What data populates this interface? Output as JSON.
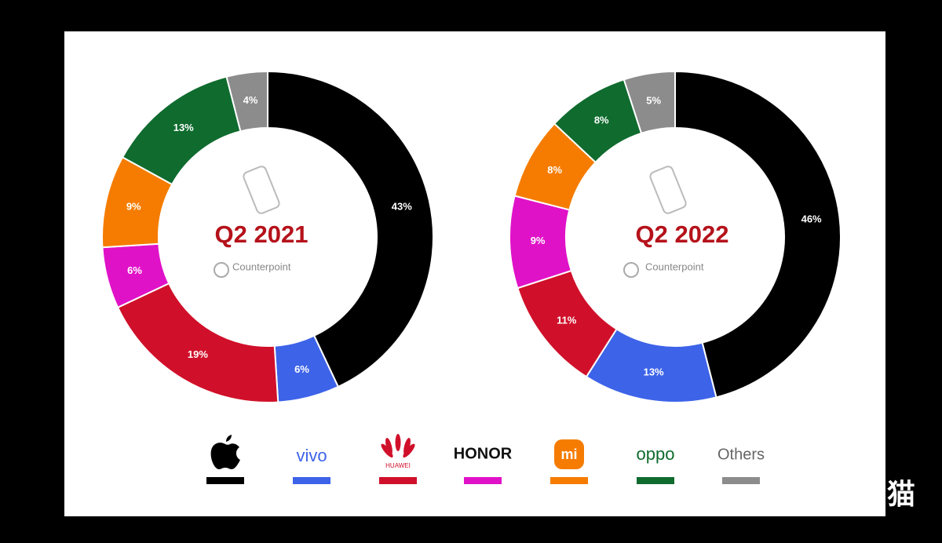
{
  "chart_data": [
    {
      "type": "donut",
      "title": "Q2 2021",
      "source": "Counterpoint",
      "categories": [
        null,
        "vivo",
        "HUAWEI",
        "HONOR",
        "mi",
        "oppo",
        "Others"
      ],
      "values": [
        43,
        6,
        19,
        6,
        9,
        13,
        4
      ],
      "value_labels": [
        "43%",
        "6%",
        "19%",
        "6%",
        "9%",
        "13%",
        "4%"
      ],
      "colors": [
        "#000000",
        "#3d63e8",
        "#d0102a",
        "#e012c8",
        "#f57c00",
        "#0f6b2e",
        "#8c8c8c"
      ]
    },
    {
      "type": "donut",
      "title": "Q2 2022",
      "source": "Counterpoint",
      "categories": [
        null,
        "vivo",
        "HUAWEI",
        "HONOR",
        "mi",
        "oppo",
        "Others"
      ],
      "values": [
        46,
        13,
        11,
        9,
        8,
        8,
        5
      ],
      "value_labels": [
        "46%",
        "13%",
        "11%",
        "9%",
        "8%",
        "8%",
        "5%"
      ],
      "colors": [
        "#000000",
        "#3d63e8",
        "#d0102a",
        "#e012c8",
        "#f57c00",
        "#0f6b2e",
        "#8c8c8c"
      ]
    }
  ],
  "watermark": "机智猫"
}
